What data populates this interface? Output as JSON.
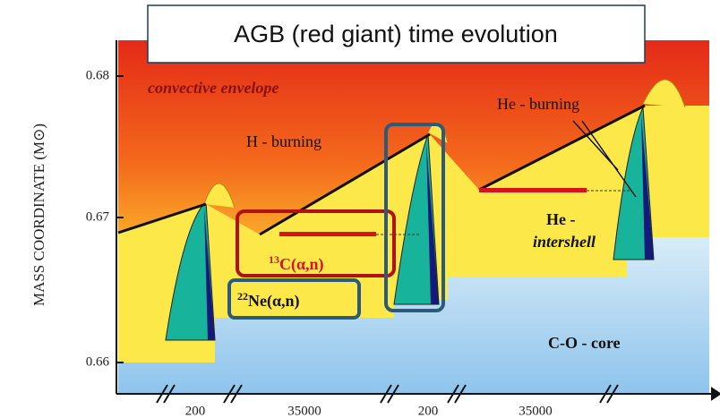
{
  "title": "AGB (red giant) time evolution",
  "y_axis": {
    "label": "MASS COORDINATE (M⊙)",
    "ticks": [
      "0.68",
      "0.67",
      "0.66"
    ]
  },
  "x_axis": {
    "labels": [
      "200",
      "35000",
      "200",
      "35000"
    ]
  },
  "annotations": {
    "envelope": "convective envelope",
    "h_burning": "H - burning",
    "he_burning": "He - burning",
    "intershell_he": "He -",
    "intershell": "intershell",
    "core": "C-O - core",
    "c13": {
      "mass": "13",
      "reaction": "C(α,n)"
    },
    "ne22": {
      "mass": "22",
      "reaction": "Ne(α,n)"
    }
  }
}
